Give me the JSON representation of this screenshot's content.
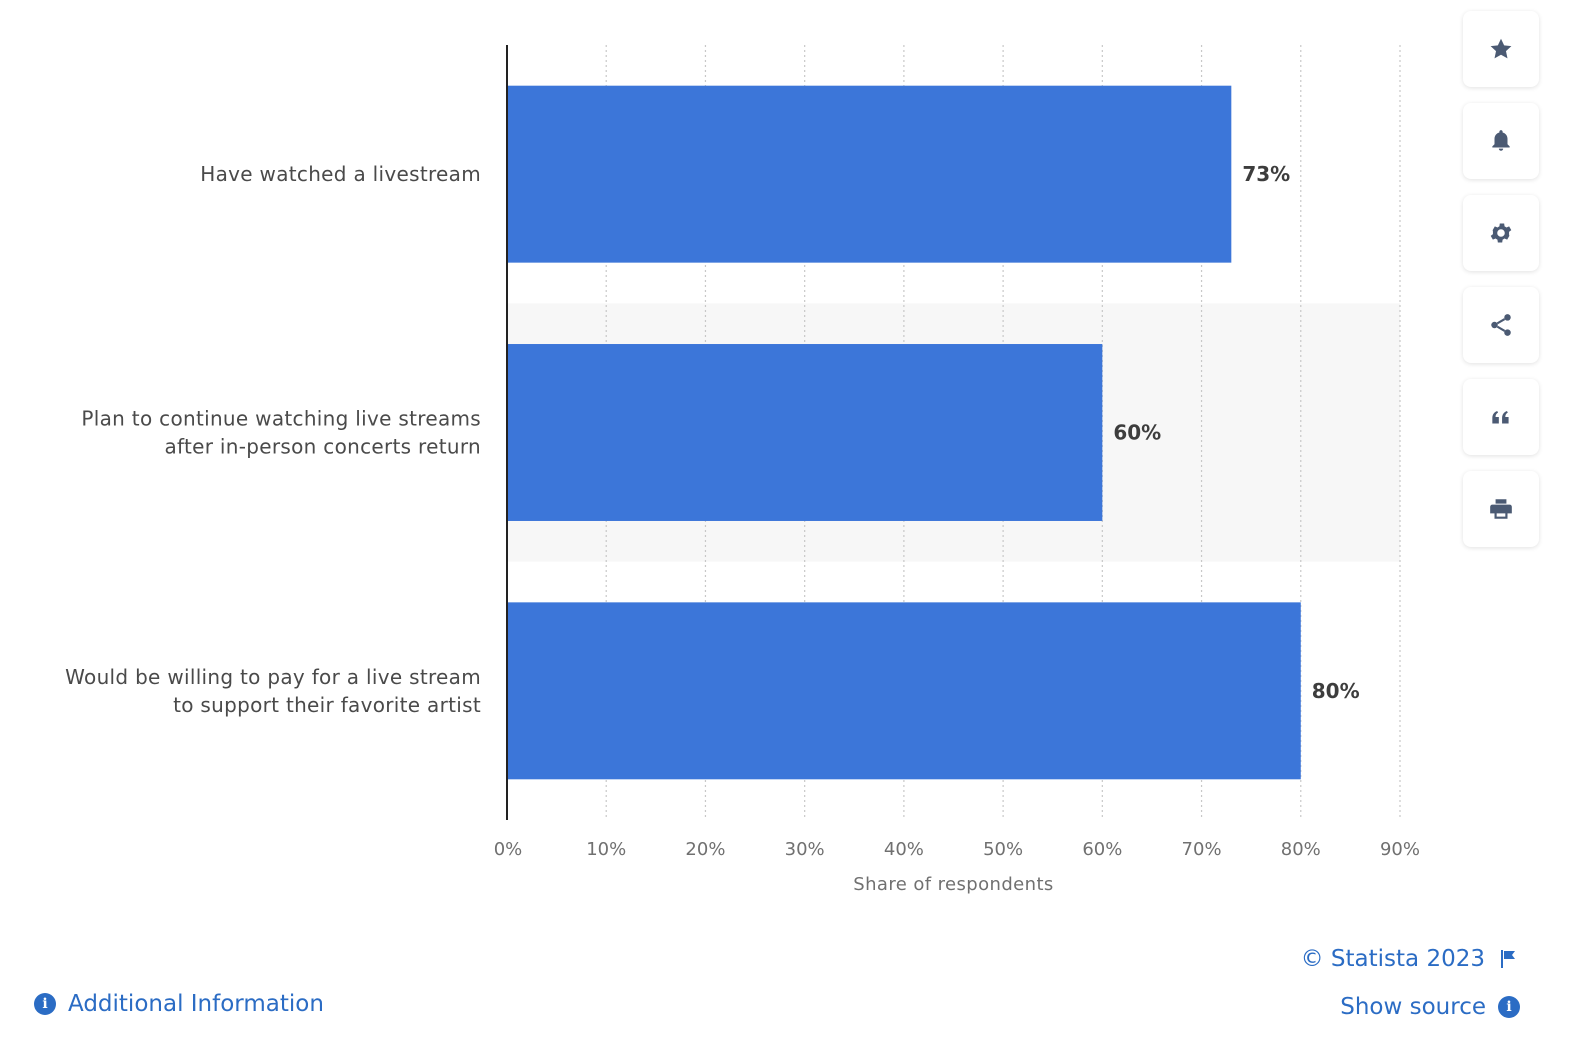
{
  "chart_data": {
    "type": "bar",
    "orientation": "horizontal",
    "categories": [
      [
        "Have watched a livestream"
      ],
      [
        "Plan to continue watching live streams",
        "after in-person concerts return"
      ],
      [
        "Would be willing to pay for a live stream",
        "to support their favorite artist"
      ]
    ],
    "values": [
      73,
      60,
      80
    ],
    "value_labels": [
      "73%",
      "60%",
      "80%"
    ],
    "xlabel": "Share of respondents",
    "ylabel": "",
    "xlim": [
      0,
      90
    ],
    "xticks": [
      0,
      10,
      20,
      30,
      40,
      50,
      60,
      70,
      80,
      90
    ],
    "xtick_labels": [
      "0%",
      "10%",
      "20%",
      "30%",
      "40%",
      "50%",
      "60%",
      "70%",
      "80%",
      "90%"
    ],
    "bar_color": "#3c76d9",
    "grid": "vertical dotted",
    "legend": "none"
  },
  "toolbar": {
    "buttons": [
      {
        "name": "favorite-button",
        "icon": "star-icon"
      },
      {
        "name": "notification-button",
        "icon": "bell-icon"
      },
      {
        "name": "settings-button",
        "icon": "gear-icon"
      },
      {
        "name": "share-button",
        "icon": "share-icon"
      },
      {
        "name": "cite-button",
        "icon": "quote-icon"
      },
      {
        "name": "print-button",
        "icon": "printer-icon"
      }
    ]
  },
  "footer": {
    "additional_info": "Additional Information",
    "copyright": "© Statista 2023",
    "show_source": "Show source"
  },
  "colors": {
    "accent": "#2b6cc4",
    "icon": "#4b5a73"
  }
}
